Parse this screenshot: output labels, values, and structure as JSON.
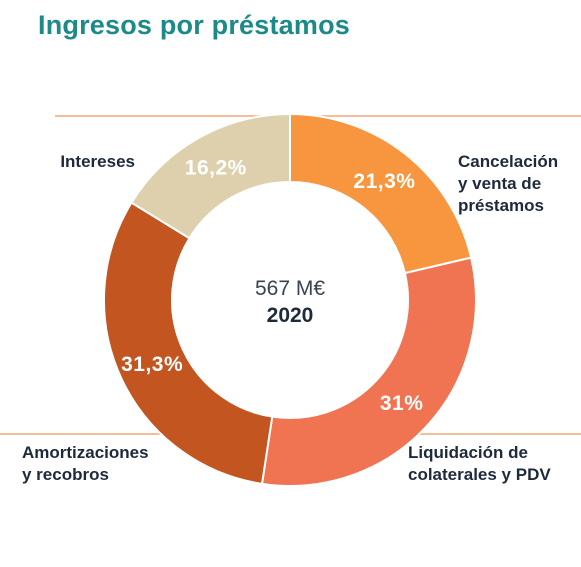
{
  "title": "Ingresos por préstamos",
  "center": {
    "total": "567 M€",
    "year": "2020"
  },
  "colors": {
    "title": "#1d8a8a",
    "leader_line": "#f0a878"
  },
  "chart_data": {
    "type": "pie",
    "donut": true,
    "title": "Ingresos por préstamos",
    "total_label": "567 M€",
    "year_label": "2020",
    "slices": [
      {
        "name": "Cancelación y venta de préstamos",
        "label_lines": [
          "Cancelación",
          "y venta de",
          "préstamos"
        ],
        "value": 21.3,
        "value_label": "21,3%",
        "color": "#f7963f"
      },
      {
        "name": "Liquidación de colaterales y PDV",
        "label_lines": [
          "Liquidación de",
          "colaterales y PDV"
        ],
        "value": 31,
        "value_label": "31%",
        "color": "#f07452"
      },
      {
        "name": "Amortizaciones y recobros",
        "label_lines": [
          "Amortizaciones",
          "y recobros"
        ],
        "value": 31.3,
        "value_label": "31,3%",
        "color": "#c25520"
      },
      {
        "name": "Intereses",
        "label_lines": [
          "Intereses"
        ],
        "value": 16.2,
        "value_label": "16,2%",
        "color": "#dfd0ad"
      }
    ]
  }
}
